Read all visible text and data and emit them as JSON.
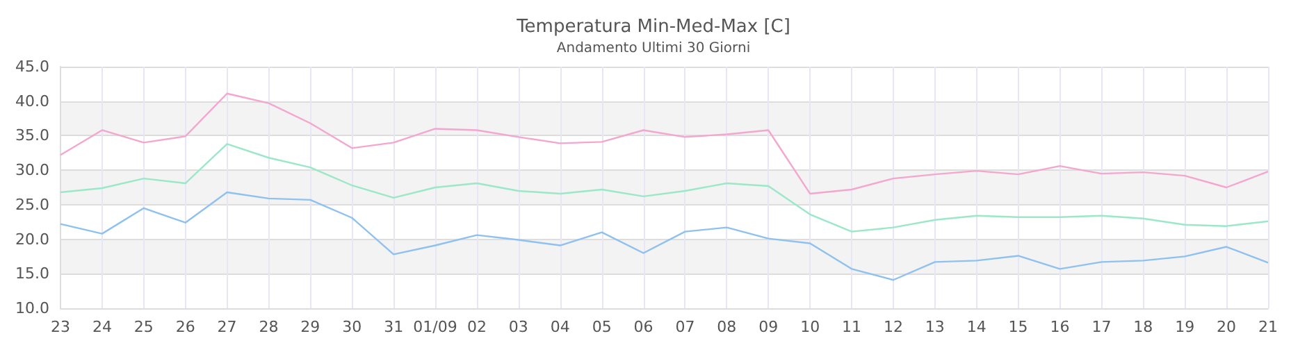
{
  "chart_data": {
    "type": "line",
    "title": "Temperatura Min-Med-Max [C]",
    "subtitle": "Andamento Ultimi 30 Giorni",
    "categories": [
      "23",
      "24",
      "25",
      "26",
      "27",
      "28",
      "29",
      "30",
      "31",
      "01/09",
      "02",
      "03",
      "04",
      "05",
      "06",
      "07",
      "08",
      "09",
      "10",
      "11",
      "12",
      "13",
      "14",
      "15",
      "16",
      "17",
      "18",
      "19",
      "20",
      "21"
    ],
    "series": [
      {
        "color": "#f4a6cf",
        "values": [
          32.2,
          35.8,
          34.0,
          34.9,
          41.1,
          39.7,
          36.8,
          33.2,
          34.0,
          36.0,
          35.8,
          34.8,
          33.9,
          34.1,
          35.8,
          34.8,
          35.2,
          35.8,
          26.6,
          27.2,
          28.8,
          29.4,
          29.9,
          29.4,
          30.6,
          29.5,
          29.7,
          29.2,
          27.5,
          29.8
        ]
      },
      {
        "color": "#9ae8c8",
        "values": [
          26.8,
          27.4,
          28.8,
          28.1,
          33.8,
          31.8,
          30.4,
          27.8,
          26.0,
          27.5,
          28.1,
          27.0,
          26.6,
          27.2,
          26.2,
          27.0,
          28.1,
          27.7,
          23.6,
          21.1,
          21.7,
          22.8,
          23.4,
          23.2,
          23.2,
          23.4,
          23.0,
          22.1,
          21.9,
          22.6
        ]
      },
      {
        "color": "#8ec0f0",
        "values": [
          22.2,
          20.8,
          24.5,
          22.4,
          26.8,
          25.9,
          25.7,
          23.1,
          17.8,
          19.1,
          20.6,
          19.9,
          19.1,
          21.0,
          18.0,
          21.1,
          21.7,
          20.1,
          19.4,
          15.7,
          14.1,
          16.7,
          16.9,
          17.6,
          15.7,
          16.7,
          16.9,
          17.5,
          18.9,
          16.6
        ]
      }
    ],
    "ylim": [
      10,
      45
    ],
    "yticks": [
      {
        "value": 10,
        "label": "10.0"
      },
      {
        "value": 15,
        "label": "15.0"
      },
      {
        "value": 20,
        "label": "20.0"
      },
      {
        "value": 25,
        "label": "25.0"
      },
      {
        "value": 30,
        "label": "30.0"
      },
      {
        "value": 35,
        "label": "35.0"
      },
      {
        "value": 40,
        "label": "40.0"
      },
      {
        "value": 45,
        "label": "45.0"
      }
    ],
    "grid": true,
    "marker": "none",
    "line_style": "solid"
  }
}
